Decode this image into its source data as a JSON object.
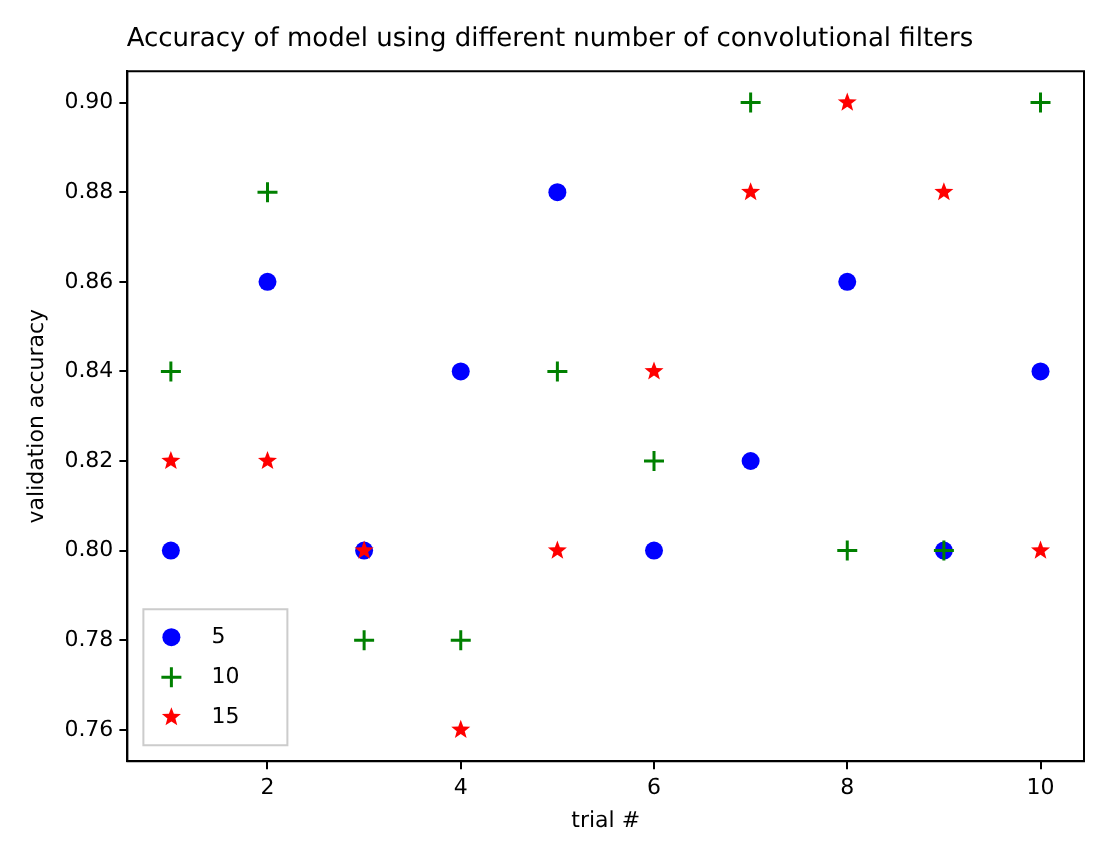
{
  "chart_data": {
    "type": "scatter",
    "title": "Accuracy of model using different number of convolutional filters",
    "xlabel": "trial #",
    "ylabel": "validation accuracy",
    "x": [
      1,
      2,
      3,
      4,
      5,
      6,
      7,
      8,
      9,
      10
    ],
    "series": [
      {
        "name": "5",
        "color": "#0000ff",
        "marker": "circle",
        "values": [
          0.8,
          0.86,
          0.8,
          0.84,
          0.88,
          0.8,
          0.82,
          0.86,
          0.8,
          0.84
        ]
      },
      {
        "name": "10",
        "color": "#008000",
        "marker": "cross",
        "values": [
          0.84,
          0.88,
          0.78,
          0.78,
          0.84,
          0.82,
          0.9,
          0.8,
          0.8,
          0.9
        ]
      },
      {
        "name": "15",
        "color": "#ff0000",
        "marker": "star",
        "values": [
          0.82,
          0.82,
          0.8,
          0.76,
          0.8,
          0.84,
          0.88,
          0.9,
          0.88,
          0.8
        ]
      }
    ],
    "xlim": [
      0.55,
      10.45
    ],
    "xticks": [
      2,
      4,
      6,
      8,
      10
    ],
    "ylim": [
      0.753,
      0.907
    ],
    "yticks": [
      0.76,
      0.78,
      {
        "value": 0.8,
        "label": "0.80"
      },
      0.82,
      0.84,
      0.86,
      0.88,
      {
        "value": 0.9,
        "label": "0.90"
      }
    ],
    "grid": false,
    "legend": "bottom left"
  }
}
